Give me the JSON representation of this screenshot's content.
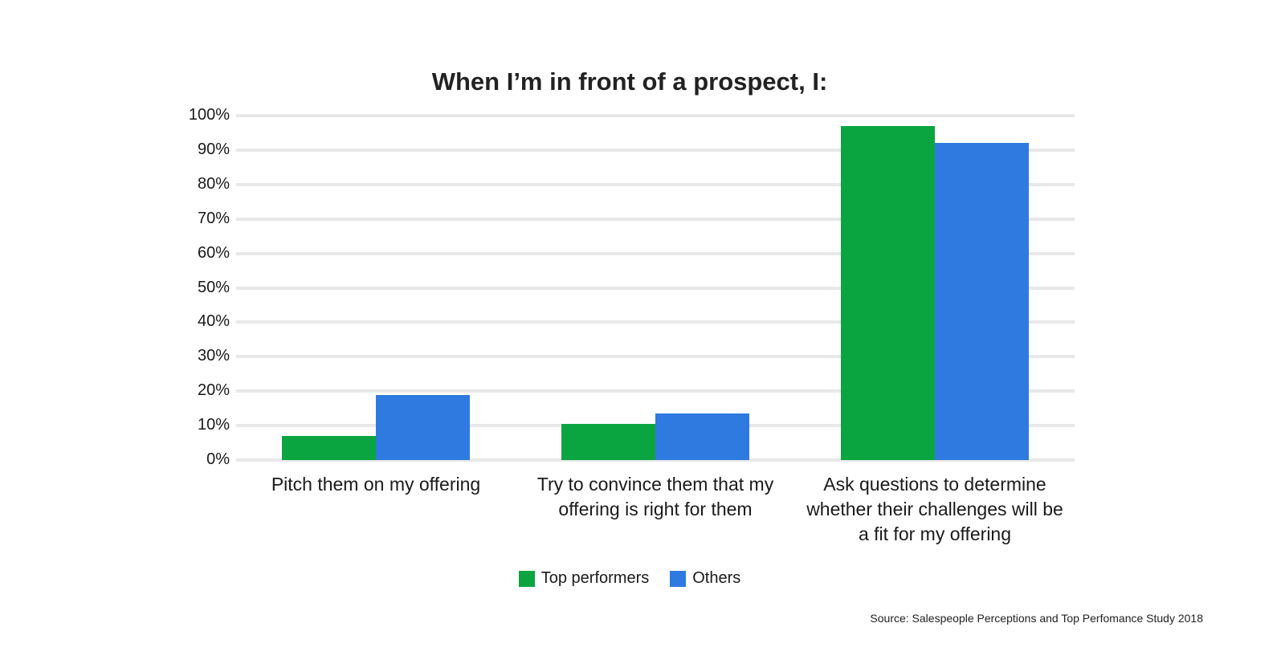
{
  "chart_data": {
    "type": "bar",
    "title": "When I’m in front of a prospect, I:",
    "categories": [
      "Pitch them on my offering",
      "Try to convince them that my offering is right for them",
      "Ask questions to determine whether their challenges will be a fit for my offering"
    ],
    "category_lines": [
      [
        "Pitch them on my offering"
      ],
      [
        "Try to convince them that my",
        "offering is right for them"
      ],
      [
        "Ask questions to determine",
        "whether their challenges will be",
        "a fit for my offering"
      ]
    ],
    "series": [
      {
        "name": "Top performers",
        "color": "#0aa540",
        "values": [
          7,
          10.5,
          97
        ]
      },
      {
        "name": "Others",
        "color": "#2f7ae0",
        "values": [
          19,
          13.5,
          92
        ]
      }
    ],
    "xlabel": "",
    "ylabel": "",
    "ylim": [
      0,
      100
    ],
    "yticks": [
      "0%",
      "10%",
      "20%",
      "30%",
      "40%",
      "50%",
      "60%",
      "70%",
      "80%",
      "90%",
      "100%"
    ],
    "grid": true,
    "legend_position": "bottom"
  },
  "source": "Source: Salespeople Perceptions and Top Perfomance Study 2018"
}
